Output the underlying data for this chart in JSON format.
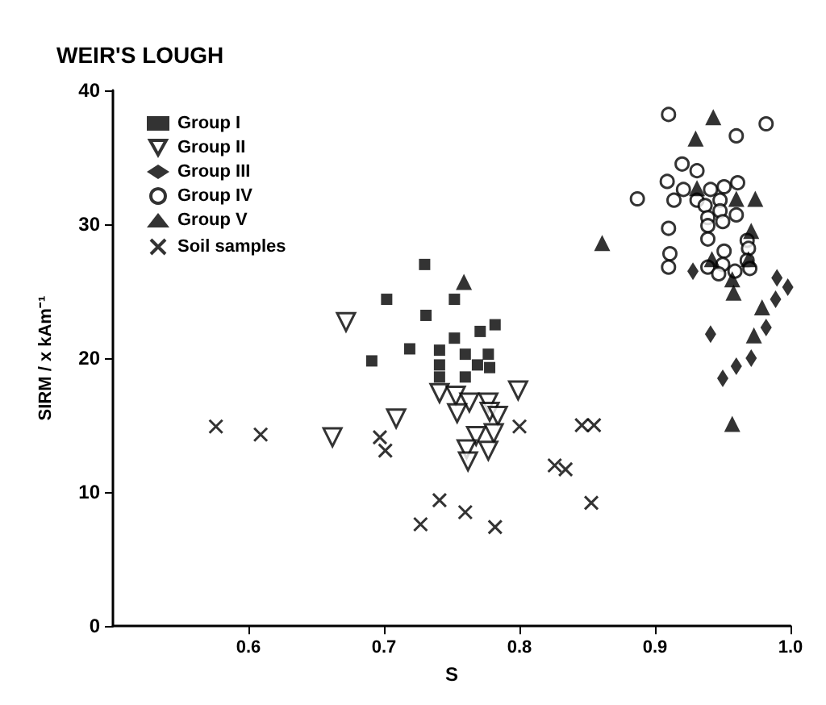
{
  "chart_data": {
    "type": "scatter",
    "title": "WEIR'S LOUGH",
    "xlabel": "S",
    "ylabel": "SIRM / x kAm⁻¹",
    "xlim": [
      0.5,
      1.0
    ],
    "ylim": [
      0,
      40
    ],
    "xticks": [
      0.6,
      0.7,
      0.8,
      0.9,
      {
        "value": 1,
        "label": "1.0"
      }
    ],
    "yticks": [
      0,
      10,
      20,
      30,
      40
    ],
    "grid": false,
    "legend": "top left",
    "series": [
      {
        "name": "Group I",
        "color": "#000000",
        "marker": "square",
        "x": [
          0.73,
          0.702,
          0.752,
          0.731,
          0.771,
          0.782,
          0.719,
          0.752,
          0.691,
          0.741,
          0.741,
          0.741,
          0.76,
          0.769,
          0.777,
          0.778,
          0.76
        ],
        "values": [
          27.0,
          24.4,
          24.4,
          23.2,
          22.0,
          22.5,
          20.7,
          21.5,
          19.8,
          20.6,
          19.5,
          18.6,
          20.3,
          19.5,
          20.3,
          19.3,
          18.6
        ]
      },
      {
        "name": "Group II",
        "color": "#000000",
        "marker": "triangle-down",
        "x": [
          0.672,
          0.709,
          0.662,
          0.741,
          0.753,
          0.763,
          0.777,
          0.799,
          0.754,
          0.778,
          0.784,
          0.768,
          0.781,
          0.761,
          0.777,
          0.762
        ],
        "values": [
          22.7,
          15.5,
          14.1,
          17.4,
          17.2,
          16.7,
          16.7,
          17.6,
          15.9,
          16.0,
          15.7,
          14.2,
          14.4,
          13.2,
          13.1,
          12.3
        ]
      },
      {
        "name": "Group III",
        "color": "#000000",
        "marker": "diamond",
        "x": [
          0.928,
          0.99,
          0.998,
          0.989,
          0.982,
          0.941,
          0.971,
          0.96,
          0.95
        ],
        "values": [
          26.5,
          26.0,
          25.3,
          24.4,
          22.3,
          21.8,
          20.0,
          19.4,
          18.5
        ]
      },
      {
        "name": "Group IV",
        "color": "#000000",
        "marker": "circle",
        "x": [
          0.91,
          0.96,
          0.982,
          0.92,
          0.931,
          0.909,
          0.887,
          0.914,
          0.921,
          0.941,
          0.951,
          0.961,
          0.931,
          0.937,
          0.948,
          0.939,
          0.948,
          0.939,
          0.95,
          0.96,
          0.91,
          0.939,
          0.968,
          0.969,
          0.911,
          0.91,
          0.951,
          0.95,
          0.939,
          0.947,
          0.959,
          0.968,
          0.97
        ],
        "values": [
          38.2,
          36.6,
          37.5,
          34.5,
          34.0,
          33.2,
          31.9,
          31.8,
          32.6,
          32.6,
          32.8,
          33.1,
          31.8,
          31.4,
          31.8,
          30.5,
          31.0,
          29.9,
          30.2,
          30.7,
          29.7,
          28.9,
          28.8,
          28.2,
          27.8,
          26.8,
          28.0,
          27.0,
          26.8,
          26.3,
          26.5,
          27.3,
          26.7
        ]
      },
      {
        "name": "Group V",
        "color": "#000000",
        "marker": "triangle",
        "x": [
          0.759,
          0.861,
          0.943,
          0.93,
          0.931,
          0.96,
          0.974,
          0.971,
          0.942,
          0.969,
          0.957,
          0.958,
          0.979,
          0.973,
          0.957
        ],
        "values": [
          25.7,
          28.6,
          38.0,
          36.4,
          32.7,
          31.9,
          31.9,
          29.5,
          27.4,
          27.4,
          25.9,
          24.9,
          23.8,
          21.7,
          15.1
        ]
      },
      {
        "name": "Soil samples",
        "color": "#000000",
        "marker": "cross",
        "x": [
          0.576,
          0.609,
          0.697,
          0.701,
          0.741,
          0.727,
          0.76,
          0.782,
          0.8,
          0.846,
          0.855,
          0.826,
          0.834,
          0.853
        ],
        "values": [
          14.9,
          14.3,
          14.1,
          13.1,
          9.4,
          7.6,
          8.5,
          7.4,
          14.9,
          15.0,
          15.0,
          12.0,
          11.7,
          9.2
        ]
      }
    ]
  }
}
